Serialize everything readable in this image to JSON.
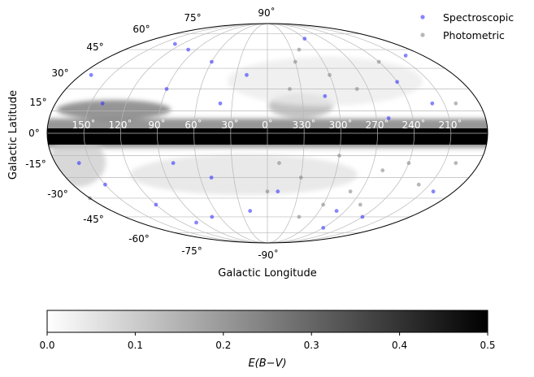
{
  "chart_data": {
    "type": "scatter",
    "projection": "mollweide",
    "xlabel": "Galactic Longitude",
    "ylabel": "Galactic Latitude",
    "lat_tick_labels": [
      "90˚",
      "75°",
      "60°",
      "45°",
      "30°",
      "15°",
      "0°",
      "-15°",
      "-30°",
      "-45°",
      "-60°",
      "-75°",
      "-90˚"
    ],
    "lon_tick_labels": [
      "150˚",
      "120˚",
      "90˚",
      "60˚",
      "30˚",
      "0˚",
      "330˚",
      "300˚",
      "270˚",
      "240˚",
      "210˚"
    ],
    "grid": true,
    "legend_placement": "top-right",
    "colorbar": {
      "label": "E(B−V)",
      "range": [
        0.0,
        0.5
      ],
      "tick_labels": [
        "0.0",
        "0.1",
        "0.2",
        "0.3",
        "0.4",
        "0.5"
      ],
      "colormap": "white-to-black"
    },
    "series": [
      {
        "name": "Spectroscopic",
        "color": "#3333ff",
        "points": [
          [
            100,
            60
          ],
          [
            60,
            50
          ],
          [
            300,
            70
          ],
          [
            170,
            40
          ],
          [
            200,
            55
          ],
          [
            90,
            30
          ],
          [
            240,
            35
          ],
          [
            40,
            20
          ],
          [
            310,
            25
          ],
          [
            140,
            20
          ],
          [
            20,
            40
          ],
          [
            80,
            -20
          ],
          [
            50,
            -30
          ],
          [
            150,
            -35
          ],
          [
            120,
            -50
          ],
          [
            100,
            -65
          ],
          [
            70,
            -60
          ],
          [
            160,
            -20
          ],
          [
            200,
            -40
          ],
          [
            240,
            -60
          ],
          [
            280,
            -55
          ],
          [
            270,
            -70
          ],
          [
            20,
            -55
          ],
          [
            350,
            -40
          ],
          [
            130,
            65
          ],
          [
            260,
            10
          ],
          [
            220,
            20
          ]
        ]
      },
      {
        "name": "Photometric",
        "color": "#888888",
        "points": [
          [
            340,
            30
          ],
          [
            330,
            50
          ],
          [
            320,
            60
          ],
          [
            300,
            40
          ],
          [
            280,
            30
          ],
          [
            240,
            50
          ],
          [
            200,
            20
          ],
          [
            350,
            -20
          ],
          [
            330,
            -30
          ],
          [
            300,
            -15
          ],
          [
            280,
            -40
          ],
          [
            260,
            -25
          ],
          [
            240,
            -20
          ],
          [
            220,
            -35
          ],
          [
            200,
            -20
          ],
          [
            180,
            -45
          ],
          [
            300,
            -50
          ],
          [
            320,
            -60
          ],
          [
            260,
            -50
          ],
          [
            0,
            -40
          ]
        ]
      }
    ]
  }
}
